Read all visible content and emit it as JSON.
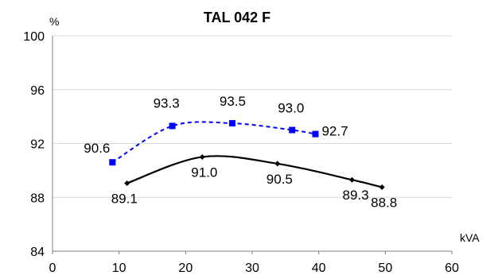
{
  "chart_data": {
    "type": "line",
    "title": "TAL 042 F",
    "xlabel": "kVA",
    "ylabel": "%",
    "xlim": [
      0,
      60
    ],
    "ylim": [
      84,
      100
    ],
    "x_ticks": [
      "0",
      "10",
      "20",
      "30",
      "40",
      "50",
      "60"
    ],
    "y_ticks": [
      "84",
      "88",
      "92",
      "96",
      "100"
    ],
    "grid": "horizontal",
    "series": [
      {
        "style": "dashed",
        "marker": "square",
        "color": "#0000ff",
        "x": [
          9,
          18,
          27,
          36,
          39.5
        ],
        "y": [
          90.6,
          93.3,
          93.5,
          93.0,
          92.7
        ],
        "labels": [
          "90.6",
          "93.3",
          "93.5",
          "93.0",
          "92.7"
        ]
      },
      {
        "style": "solid",
        "marker": "diamond",
        "color": "#000000",
        "x": [
          11.2,
          22.5,
          33.8,
          45.0,
          49.5
        ],
        "y": [
          89.05,
          91.0,
          90.5,
          89.3,
          88.75
        ],
        "labels": [
          "89.1",
          "91.0",
          "90.5",
          "89.3",
          "88.8"
        ]
      }
    ]
  }
}
